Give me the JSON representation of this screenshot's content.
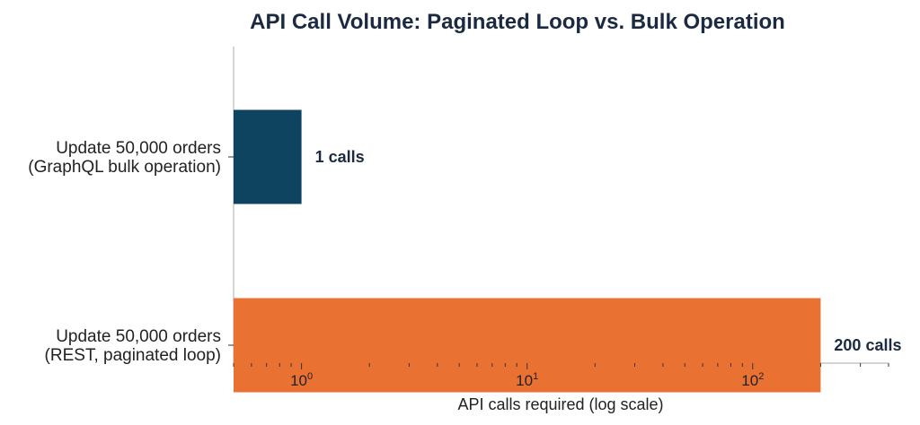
{
  "chart_data": {
    "type": "bar",
    "orientation": "horizontal",
    "title": "API Call Volume: Paginated Loop vs. Bulk Operation",
    "xlabel": "API calls required (log scale)",
    "ylabel": "",
    "xscale": "log",
    "xlim": [
      0.5,
      400
    ],
    "grid": false,
    "categories": [
      [
        "Update 50,000 orders",
        "(GraphQL bulk operation)"
      ],
      [
        "Update 50,000 orders",
        "(REST, paginated loop)"
      ]
    ],
    "values": [
      1,
      200
    ],
    "data_labels": [
      "1 calls",
      "200 calls"
    ],
    "colors": [
      "#0f4460",
      "#e97233"
    ],
    "major_ticks": [
      {
        "base": "10",
        "exp": "0",
        "value": 1
      },
      {
        "base": "10",
        "exp": "1",
        "value": 10
      },
      {
        "base": "10",
        "exp": "2",
        "value": 100
      }
    ]
  }
}
